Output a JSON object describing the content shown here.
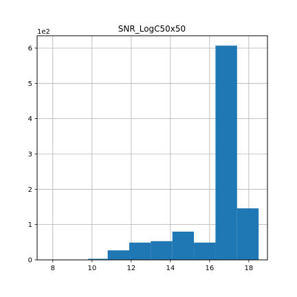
{
  "chart_data": {
    "type": "bar",
    "title": "SNR_LogC50x50",
    "xlabel": "",
    "ylabel": "",
    "y_multiplier_label": "1e2",
    "xlim": [
      7.2,
      18.95
    ],
    "ylim": [
      0,
      6.35
    ],
    "x_ticks": [
      8,
      10,
      12,
      14,
      16,
      18
    ],
    "y_ticks": [
      0,
      1,
      2,
      3,
      4,
      5,
      6
    ],
    "grid": true,
    "bar_color": "#1f77b4",
    "bins": [
      {
        "x0": 7.6,
        "x1": 8.7,
        "value": 0.01
      },
      {
        "x0": 8.7,
        "x1": 9.8,
        "value": 0.01
      },
      {
        "x0": 9.8,
        "x1": 10.8,
        "value": 0.03
      },
      {
        "x0": 10.8,
        "x1": 11.9,
        "value": 0.27
      },
      {
        "x0": 11.9,
        "x1": 13.0,
        "value": 0.49
      },
      {
        "x0": 13.0,
        "x1": 14.1,
        "value": 0.53
      },
      {
        "x0": 14.1,
        "x1": 15.2,
        "value": 0.8
      },
      {
        "x0": 15.2,
        "x1": 16.3,
        "value": 0.49
      },
      {
        "x0": 16.3,
        "x1": 17.4,
        "value": 6.07
      },
      {
        "x0": 17.4,
        "x1": 18.5,
        "value": 1.46
      }
    ]
  }
}
